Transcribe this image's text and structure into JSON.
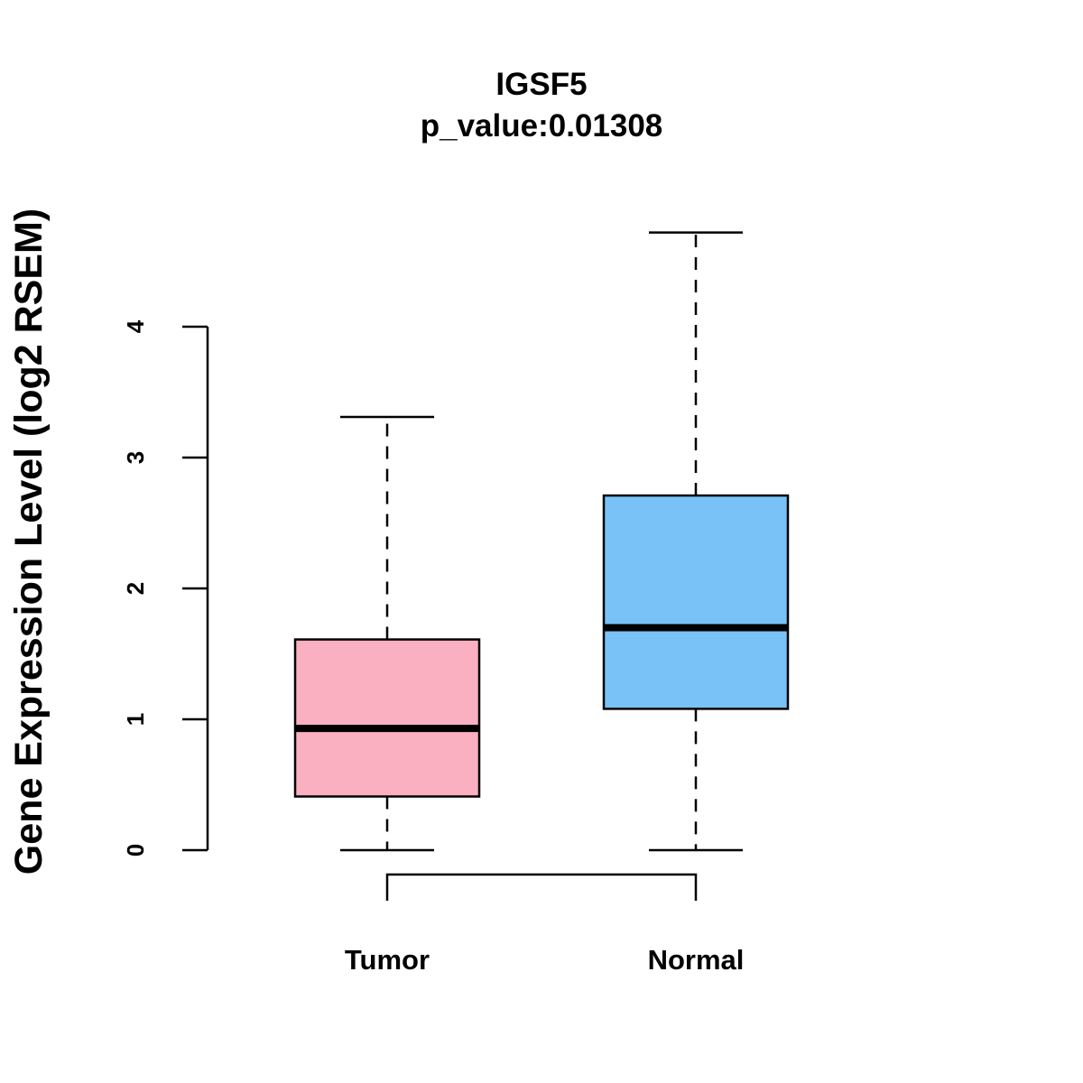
{
  "chart_data": {
    "type": "box",
    "title": "IGSF5",
    "subtitle": "p_value:0.01308",
    "xlabel": "",
    "ylabel": "Gene Expression Level (log2 RSEM)",
    "ylim": [
      0,
      4
    ],
    "yticks": [
      0,
      1,
      2,
      3,
      4
    ],
    "grid": false,
    "categories": [
      "Tumor",
      "Normal"
    ],
    "series": [
      {
        "name": "Tumor",
        "color": "#FBB0C2",
        "whisker_low": 0,
        "q1": 0.41,
        "median": 0.93,
        "q3": 1.61,
        "whisker_high": 3.31
      },
      {
        "name": "Normal",
        "color": "#79C2F8",
        "whisker_low": 0,
        "q1": 1.08,
        "median": 1.7,
        "q3": 2.71,
        "whisker_high": 4.72
      }
    ],
    "comparison_bracket": [
      "Tumor",
      "Normal"
    ]
  }
}
